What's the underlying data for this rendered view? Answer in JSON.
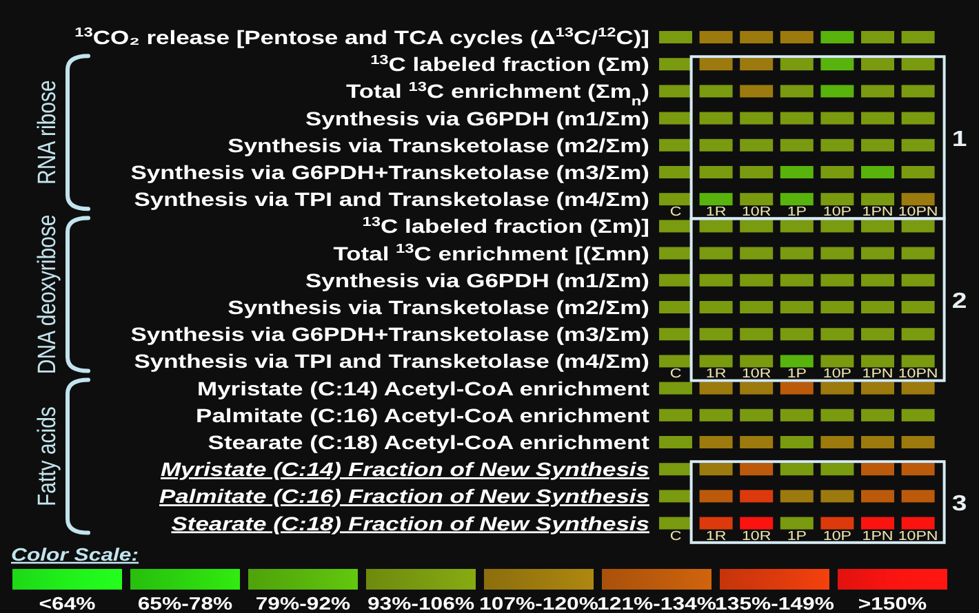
{
  "chart_data": {
    "type": "heatmap",
    "categories": [
      "C",
      "1R",
      "10R",
      "1P",
      "10P",
      "1PN",
      "10PN"
    ],
    "y_categories": [
      "$^{13}$CO₂ release [Pentose and TCA cycles (Δ$^{13}$C/$^{12}$C)]",
      "$^{13}$C labeled fraction (Σm)",
      "Total $^{13}$C enrichment (Σm$_{n}$)",
      "Synthesis via G6PDH (m1/Σm)",
      "Synthesis via Transketolase (m2/Σm)",
      "Synthesis via G6PDH+Transketolase (m3/Σm)",
      "Synthesis via TPI and Transketolase (m4/Σm)",
      "$^{13}$C labeled fraction (Σm)]",
      "Total $^{13}$C enrichment [(Σmn)",
      "Synthesis via G6PDH (m1/Σm)",
      "Synthesis via Transketolase (m2/Σm)",
      "Synthesis via G6PDH+Transketolase (m3/Σm)",
      "Synthesis via TPI and Transketolase (m4/Σm)",
      "Myristate (C:14) Acetyl-CoA enrichment",
      "Palmitate (C:16) Acetyl-CoA enrichment",
      "Stearate (C:18) Acetyl-CoA enrichment",
      "Myristate (C:14) Fraction of New Synthesis",
      "Palmitate (C:16) Fraction of New Synthesis",
      "Stearate (C:18) Fraction of New Synthesis"
    ],
    "cells": [
      [
        99,
        113,
        113,
        113,
        85,
        99,
        99
      ],
      [
        99,
        113,
        113,
        99,
        85,
        99,
        99
      ],
      [
        99,
        99,
        113,
        99,
        85,
        99,
        99
      ],
      [
        99,
        99,
        99,
        99,
        99,
        99,
        99
      ],
      [
        99,
        99,
        99,
        99,
        99,
        99,
        99
      ],
      [
        99,
        99,
        99,
        85,
        99,
        85,
        99
      ],
      [
        99,
        85,
        99,
        85,
        99,
        99,
        113
      ],
      [
        99,
        99,
        99,
        99,
        99,
        99,
        99
      ],
      [
        99,
        99,
        99,
        99,
        99,
        99,
        99
      ],
      [
        99,
        99,
        99,
        99,
        99,
        99,
        99
      ],
      [
        99,
        99,
        99,
        99,
        99,
        99,
        99
      ],
      [
        99,
        99,
        99,
        99,
        99,
        99,
        99
      ],
      [
        99,
        99,
        99,
        85,
        99,
        99,
        99
      ],
      [
        99,
        113,
        113,
        127,
        113,
        113,
        113
      ],
      [
        99,
        99,
        99,
        99,
        99,
        99,
        99
      ],
      [
        99,
        113,
        113,
        99,
        113,
        113,
        113
      ],
      [
        99,
        113,
        127,
        99,
        99,
        127,
        127
      ],
      [
        99,
        127,
        141,
        113,
        113,
        127,
        127
      ],
      [
        99,
        141,
        155,
        99,
        141,
        155,
        155
      ]
    ],
    "colors": [
      "#20f01a",
      "#2cd40e",
      "#58b40c",
      "#7a9a10",
      "#9c7a0e",
      "#bc5a0c",
      "#dc3a0c",
      "#fa1410"
    ],
    "clim": [
      50,
      162
    ],
    "clabel": "Color Scale:",
    "cticks": [
      {
        "value": 57,
        "label": "<64%"
      },
      {
        "value": 71,
        "label": "65%-78%"
      },
      {
        "value": 85,
        "label": "79%-92%"
      },
      {
        "value": 99,
        "label": "93%-106%"
      },
      {
        "value": 113,
        "label": "107%-120%"
      },
      {
        "value": 127,
        "label": "121%-134%"
      },
      {
        "value": 141,
        "label": "135%-149%"
      },
      {
        "value": 155,
        "label": ">150%"
      }
    ],
    "annotations": [
      "RNA ribose",
      "1",
      "DNA deoxyribose",
      "2",
      "Fatty acids",
      "3"
    ]
  }
}
